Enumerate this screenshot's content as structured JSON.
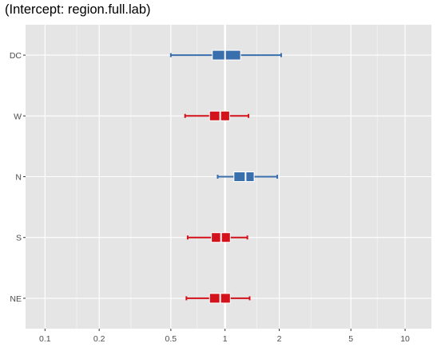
{
  "chart_data": {
    "type": "forest",
    "title": "(Intercept: region.full.lab)",
    "xlabel": "",
    "ylabel": "",
    "x_scale": "log10",
    "xlim": [
      0.078,
      14
    ],
    "x_ticks": [
      0.1,
      0.2,
      0.5,
      1,
      2,
      5,
      10
    ],
    "x_tick_labels": [
      "0.1",
      "0.2",
      "0.5",
      "1",
      "2",
      "5",
      "10"
    ],
    "x_minor_ticks": [
      0.15,
      0.3,
      0.7,
      1.5,
      3,
      7
    ],
    "reference_line": 1,
    "grid": true,
    "colors": {
      "above_one": "#3a6fad",
      "below_one": "#d3121c",
      "panel": "#e5e5e5",
      "gridline": "#ffffff"
    },
    "categories": [
      "DC",
      "W",
      "N",
      "S",
      "NE"
    ],
    "rows": [
      {
        "label": "DC",
        "estimate": 1.0,
        "box_low": 0.85,
        "box_high": 1.22,
        "ci_low": 0.5,
        "ci_high": 2.05
      },
      {
        "label": "W",
        "estimate": 0.94,
        "box_low": 0.82,
        "box_high": 1.06,
        "ci_low": 0.6,
        "ci_high": 1.35
      },
      {
        "label": "N",
        "estimate": 1.3,
        "box_low": 1.12,
        "box_high": 1.45,
        "ci_low": 0.91,
        "ci_high": 1.95
      },
      {
        "label": "S",
        "estimate": 0.95,
        "box_low": 0.84,
        "box_high": 1.07,
        "ci_low": 0.62,
        "ci_high": 1.33
      },
      {
        "label": "NE",
        "estimate": 0.94,
        "box_low": 0.82,
        "box_high": 1.07,
        "ci_low": 0.61,
        "ci_high": 1.37
      }
    ]
  }
}
